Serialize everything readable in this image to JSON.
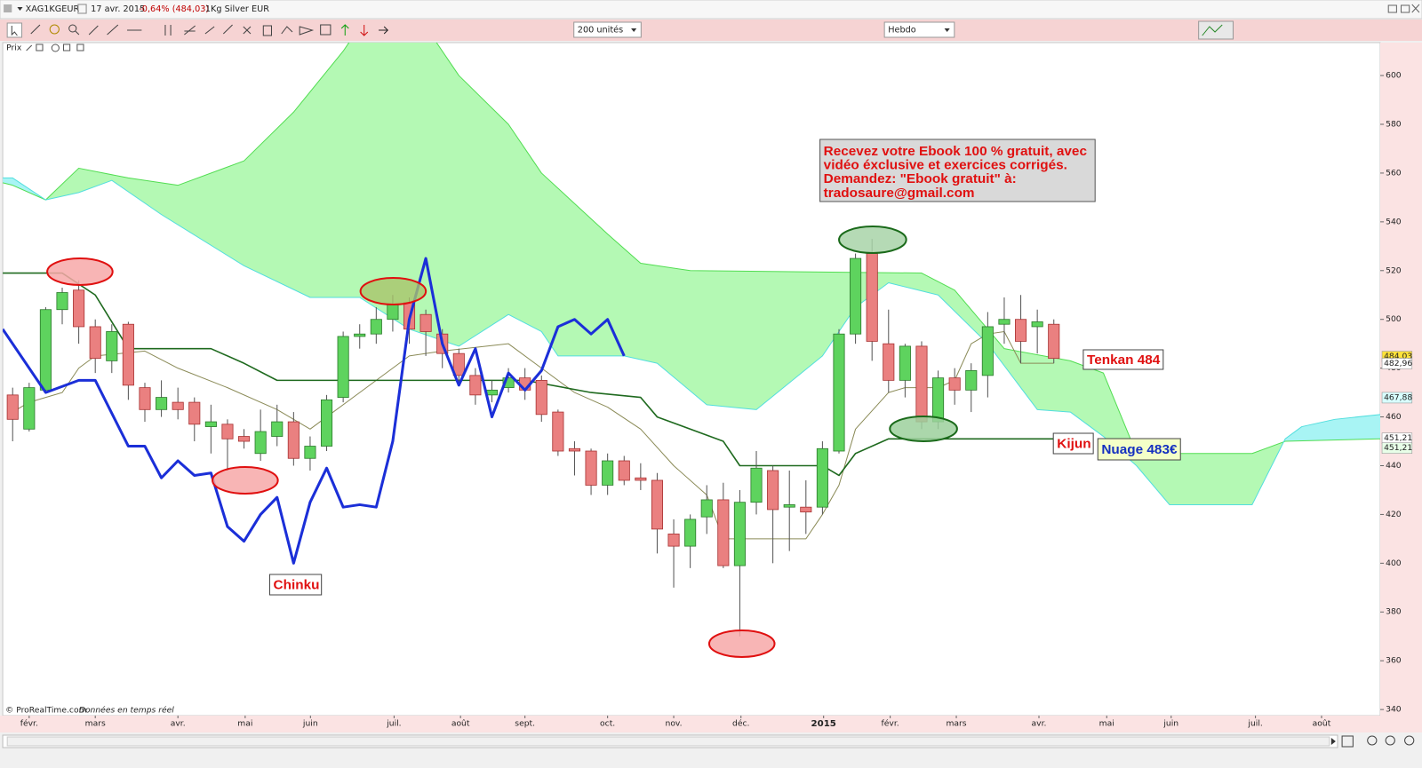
{
  "header": {
    "symbol": "XAG1KGEUR",
    "date": "17 avr. 2015",
    "change": "-0,64% (484,03)",
    "name": "1Kg Silver EUR"
  },
  "toolbar": {
    "units": "200 unités",
    "period": "Hebdo"
  },
  "panel_label": "Prix",
  "footer": {
    "copyright": "© ProRealTime.com",
    "note": "Données en temps réel"
  },
  "chart_data": {
    "type": "candlestick",
    "open": [
      469,
      455,
      471,
      504,
      512,
      497,
      483,
      498,
      472,
      463,
      466,
      466,
      456,
      457,
      452,
      445,
      452,
      458,
      443,
      448,
      468,
      493,
      494,
      500,
      507,
      502,
      494,
      486,
      477,
      469,
      472,
      476,
      475,
      462,
      447,
      446,
      432,
      442,
      435,
      434,
      412,
      407,
      419,
      426,
      399,
      425,
      438,
      423,
      423,
      423,
      446,
      494,
      527,
      490,
      475,
      489,
      458,
      476,
      471,
      477,
      498,
      500,
      497,
      498
    ],
    "high": [
      472,
      474,
      505,
      513,
      516,
      500,
      498,
      499,
      474,
      475,
      472,
      468,
      465,
      459,
      455,
      463,
      465,
      462,
      452,
      469,
      495,
      498,
      505,
      510,
      509,
      504,
      496,
      488,
      480,
      475,
      480,
      480,
      477,
      463,
      450,
      447,
      445,
      444,
      441,
      437,
      418,
      420,
      432,
      433,
      430,
      446,
      440,
      438,
      434,
      450,
      496,
      527,
      533,
      504,
      490,
      491,
      479,
      480,
      482,
      503,
      509,
      510,
      504,
      500
    ],
    "low": [
      450,
      454,
      470,
      498,
      490,
      478,
      478,
      467,
      458,
      460,
      459,
      450,
      445,
      438,
      447,
      442,
      448,
      440,
      438,
      446,
      466,
      488,
      490,
      495,
      490,
      485,
      480,
      473,
      465,
      466,
      470,
      467,
      458,
      444,
      436,
      428,
      428,
      432,
      430,
      404,
      390,
      398,
      412,
      398,
      370,
      420,
      400,
      405,
      412,
      420,
      445,
      490,
      483,
      470,
      468,
      455,
      455,
      465,
      462,
      468,
      490,
      482,
      486,
      482
    ],
    "close": [
      459,
      472,
      504,
      511,
      497,
      484,
      495,
      473,
      463,
      468,
      463,
      457,
      458,
      451,
      450,
      454,
      458,
      443,
      448,
      467,
      493,
      494,
      500,
      506,
      496,
      495,
      486,
      477,
      469,
      471,
      476,
      471,
      461,
      446,
      446,
      432,
      442,
      434,
      434,
      414,
      407,
      418,
      426,
      399,
      425,
      439,
      422,
      424,
      421,
      447,
      494,
      525,
      491,
      475,
      489,
      458,
      476,
      471,
      479,
      497,
      500,
      491,
      499,
      484
    ],
    "up_color": "#5ed35e",
    "down_color": "#ea8080",
    "cloud_color": "#b4f9b4",
    "cloud_color_alt": "#a8f4f4",
    "lines": {
      "senkou_b": {
        "color": "#52dd52",
        "width": 1,
        "x": [
          -0.6,
          0,
          2,
          4,
          7,
          10,
          14,
          17,
          20,
          21,
          25,
          27,
          30,
          32,
          36,
          38,
          41,
          55,
          57,
          60,
          64,
          66,
          68,
          75,
          77,
          82.75
        ],
        "values": [
          556,
          555,
          549,
          562,
          558,
          555,
          565,
          585,
          610,
          620,
          620,
          600,
          580,
          560,
          535,
          523,
          520,
          519,
          512,
          488,
          483,
          478,
          445,
          445,
          450,
          451
        ]
      },
      "senkou_a": {
        "color": "#52dede",
        "width": 1,
        "x": [
          -0.6,
          0,
          2,
          4,
          6,
          9,
          14,
          18,
          21,
          24,
          27,
          30,
          32,
          33,
          37,
          39,
          42,
          45,
          47,
          49,
          51,
          53,
          56,
          59,
          62,
          64,
          66,
          68,
          70,
          75,
          77,
          78,
          80,
          82.75
        ],
        "values": [
          558,
          558,
          549,
          552,
          557,
          543,
          522,
          509,
          509,
          496,
          489,
          502,
          495,
          485,
          485,
          482,
          465,
          463,
          474,
          485,
          505,
          515,
          510,
          490,
          463,
          462,
          452,
          440,
          424,
          424,
          451,
          456,
          459,
          461
        ]
      },
      "tenkan": {
        "color": "#8b8b58",
        "width": 1,
        "x": [
          0,
          1,
          3,
          4,
          5,
          8,
          10,
          13,
          16,
          18,
          19,
          21,
          23,
          24,
          26,
          30,
          32,
          34,
          36,
          38,
          40,
          42,
          43,
          48,
          49,
          50,
          51,
          53,
          54,
          56,
          57,
          58,
          59,
          60,
          61,
          63
        ],
        "values": [
          462,
          466,
          470,
          480,
          485,
          487,
          480,
          472,
          463,
          455,
          460,
          470,
          480,
          485,
          487,
          490,
          480,
          470,
          464,
          455,
          440,
          428,
          410,
          410,
          420,
          432,
          455,
          470,
          472,
          472,
          475,
          490,
          494,
          495,
          482,
          482
        ]
      },
      "kijun": {
        "color": "#1f6a1f",
        "width": 1.6,
        "x": [
          -0.6,
          3,
          5,
          7,
          12,
          14,
          16,
          31,
          35,
          38,
          39,
          43,
          44,
          49,
          50,
          51,
          53,
          63
        ],
        "values": [
          519,
          519,
          510,
          488,
          488,
          482,
          475,
          475,
          470,
          468,
          460,
          450,
          440,
          440,
          436,
          445,
          451,
          451
        ]
      },
      "chinku": {
        "color": "#1b2fd8",
        "width": 3,
        "x": [
          -0.6,
          2,
          4,
          5,
          7,
          8,
          9,
          10,
          11,
          12,
          13,
          14,
          15,
          16,
          17,
          18,
          19,
          20,
          21,
          22,
          23,
          24,
          25,
          26,
          27,
          28,
          29,
          30,
          31,
          32,
          33,
          34,
          35,
          36,
          37
        ],
        "values": [
          496,
          470,
          475,
          475,
          448,
          448,
          435,
          442,
          436,
          437,
          415,
          409,
          420,
          427,
          400,
          425,
          439,
          423,
          424,
          423,
          450,
          500,
          525,
          490,
          473,
          488,
          460,
          478,
          471,
          479,
          497,
          500,
          494,
          500,
          485
        ]
      }
    },
    "xlim": [
      -0.6,
      82.75
    ],
    "xticks": [
      {
        "value": 1.0,
        "label": "févr."
      },
      {
        "value": 5.0,
        "label": "mars"
      },
      {
        "value": 10.0,
        "label": "avr."
      },
      {
        "value": 14.07,
        "label": "mai"
      },
      {
        "value": 18.02,
        "label": "juin"
      },
      {
        "value": 23.08,
        "label": "juil."
      },
      {
        "value": 27.1,
        "label": "août"
      },
      {
        "value": 31.0,
        "label": "sept."
      },
      {
        "value": 36.0,
        "label": "oct."
      },
      {
        "value": 40.0,
        "label": "nov."
      },
      {
        "value": 44.07,
        "label": "déc."
      },
      {
        "value": 49.07,
        "label": "2015"
      },
      {
        "value": 53.1,
        "label": "févr."
      },
      {
        "value": 57.1,
        "label": "mars"
      },
      {
        "value": 62.1,
        "label": "avr."
      },
      {
        "value": 66.2,
        "label": "mai"
      },
      {
        "value": 70.1,
        "label": "juin"
      },
      {
        "value": 75.2,
        "label": "juil."
      },
      {
        "value": 79.2,
        "label": "août"
      }
    ],
    "ylim": [
      337.5,
      613.5
    ],
    "yticks": [
      340,
      360,
      380,
      400,
      420,
      440,
      460,
      480,
      500,
      520,
      540,
      560,
      580,
      600
    ],
    "price_flags": {
      "values": [
        484.03,
        482.96,
        467.88,
        451.21,
        451.21
      ],
      "value_labels": [
        "484,03",
        "482,96",
        "467,88",
        "451,21",
        "451,21"
      ],
      "colors": [
        "#ffe23a",
        "#ffffff",
        "#d8ffff",
        "#ffffff",
        "#e8ffe8"
      ]
    },
    "ebook": [
      "Recevez votre Ebook 100 % gratuit, avec",
      "vidéo éxclusive et exercices corrigés.",
      "Demandez: \"Ebook gratuit\" à:",
      "tradosaure@gmail.com"
    ],
    "annotations": [
      "Chinku",
      "Tenkan 484",
      "Kijun",
      "Nuage 483€"
    ]
  }
}
